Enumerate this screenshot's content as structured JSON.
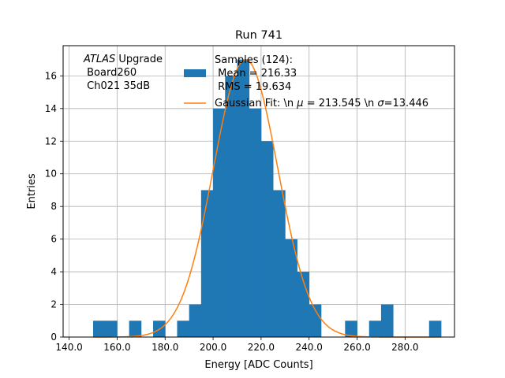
{
  "chart_data": {
    "type": "bar",
    "title": "Run 741",
    "xlabel": "Energy [ADC Counts]",
    "ylabel": "Entries",
    "xlim": [
      137.5,
      300.6
    ],
    "ylim": [
      0,
      17.85
    ],
    "grid": true,
    "x_ticks": [
      140.0,
      160.0,
      180.0,
      200.0,
      220.0,
      240.0,
      260.0,
      280.0
    ],
    "x_tick_labels": [
      "140.0",
      "160.0",
      "180.0",
      "200.0",
      "220.0",
      "240.0",
      "260.0",
      "280.0"
    ],
    "y_ticks": [
      0,
      2,
      4,
      6,
      8,
      10,
      12,
      14,
      16
    ],
    "y_tick_labels": [
      "0",
      "2",
      "4",
      "6",
      "8",
      "10",
      "12",
      "14",
      "16"
    ],
    "bin_width": 5,
    "histogram": {
      "bin_start": [
        150,
        155,
        160,
        165,
        170,
        175,
        180,
        185,
        190,
        195,
        200,
        205,
        210,
        215,
        220,
        225,
        230,
        235,
        240,
        245,
        250,
        255,
        260,
        265,
        270,
        275,
        280,
        285,
        290
      ],
      "counts": [
        1,
        1,
        0,
        1,
        0,
        1,
        0,
        1,
        2,
        9,
        14,
        16,
        17,
        14,
        12,
        9,
        6,
        4,
        2,
        0,
        0,
        1,
        0,
        1,
        2,
        0,
        0,
        0,
        1
      ],
      "color": "#1f77b4"
    },
    "fit": {
      "mu": 213.545,
      "sigma": 13.446,
      "peak": 17.0,
      "color": "#ff7f0e"
    },
    "legend": {
      "placement": "top-right",
      "histogram_lines": [
        "Samples (124):",
        " Mean = 216.33",
        " RMS = 19.634"
      ],
      "fit_label_prefix": "Gaussian Fit: \\n ",
      "fit_label_mu": "μ",
      "fit_label_mid": " = 213.545 \\n ",
      "fit_label_sigma": "σ",
      "fit_label_end": "=13.446"
    },
    "annotation": {
      "italic": "ATLAS",
      "rest": " Upgrade",
      "line2": " Board260",
      "line3": " Ch021 35dB"
    }
  }
}
